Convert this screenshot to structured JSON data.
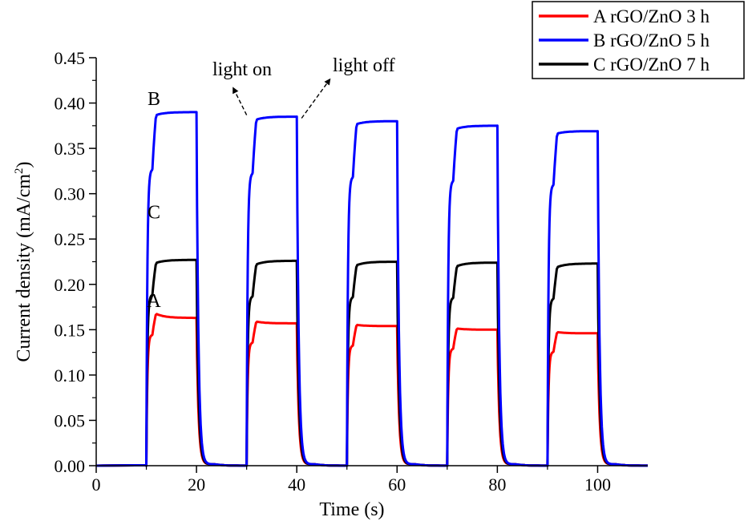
{
  "chart_data": {
    "type": "line",
    "xlabel": "Time (s)",
    "ylabel": "Current density (mA/cm²)",
    "ylabel_main": "Current density (mA/cm",
    "ylabel_sup": "2",
    "ylabel_close": ")",
    "xlim": [
      0,
      110
    ],
    "ylim": [
      0,
      0.45
    ],
    "xticks": [
      0,
      20,
      40,
      60,
      80,
      100
    ],
    "xtick_labels": [
      "0",
      "20",
      "40",
      "60",
      "80",
      "100"
    ],
    "yticks": [
      0,
      0.05,
      0.1,
      0.15,
      0.2,
      0.25,
      0.3,
      0.35,
      0.4,
      0.45
    ],
    "ytick_labels": [
      "0.00",
      "0.05",
      "0.10",
      "0.15",
      "0.20",
      "0.25",
      "0.30",
      "0.35",
      "0.40",
      "0.45"
    ],
    "grid": false,
    "legend_position": "top-right",
    "pulses": [
      {
        "on": 10,
        "off": 20
      },
      {
        "on": 30,
        "off": 40
      },
      {
        "on": 50,
        "off": 60
      },
      {
        "on": 70,
        "off": 80
      },
      {
        "on": 90,
        "off": 100
      }
    ],
    "series": [
      {
        "name": "A rGO/ZnO 3 h",
        "label": "A",
        "color": "#ff0000",
        "plateau_start": [
          0.17,
          0.16,
          0.156,
          0.152,
          0.148
        ],
        "plateau_end": [
          0.163,
          0.157,
          0.154,
          0.15,
          0.146
        ]
      },
      {
        "name": "B rGO/ZnO 5 h",
        "label": "B",
        "color": "#0000ff",
        "plateau_start": [
          0.385,
          0.38,
          0.375,
          0.37,
          0.365
        ],
        "plateau_end": [
          0.39,
          0.385,
          0.38,
          0.375,
          0.369
        ]
      },
      {
        "name": "C rGO/ZnO 7 h",
        "label": "C",
        "color": "#000000",
        "plateau_start": [
          0.222,
          0.22,
          0.219,
          0.218,
          0.217
        ],
        "plateau_end": [
          0.227,
          0.226,
          0.225,
          0.224,
          0.223
        ]
      }
    ],
    "annotations": [
      {
        "text": "light on",
        "x": 30,
        "y": 0.385
      },
      {
        "text": "light off",
        "x": 40,
        "y": 0.385
      }
    ],
    "curve_labels": [
      {
        "text": "B",
        "x": 8,
        "y": 0.405
      },
      {
        "text": "C",
        "x": 8,
        "y": 0.28
      },
      {
        "text": "A",
        "x": 8,
        "y": 0.182
      }
    ]
  }
}
